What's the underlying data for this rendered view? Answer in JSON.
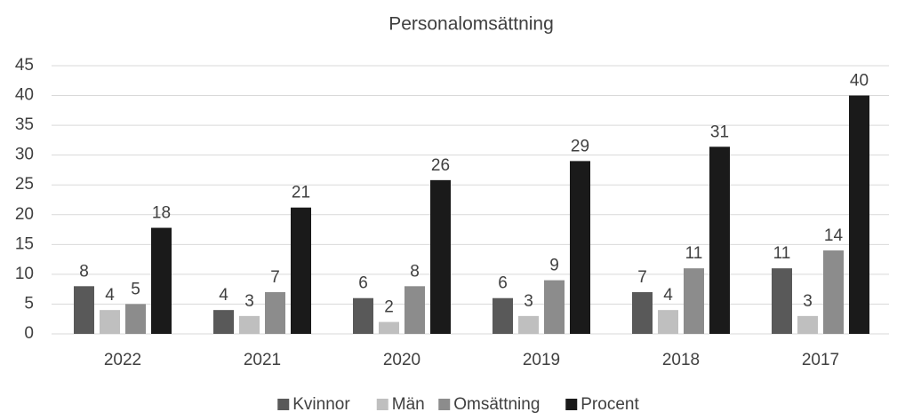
{
  "chart_data": {
    "type": "bar",
    "title": "Personalomsättning",
    "categories": [
      "2022",
      "2021",
      "2020",
      "2019",
      "2018",
      "2017"
    ],
    "series": [
      {
        "name": "Kvinnor",
        "color": "#595959",
        "values": [
          8,
          4,
          6,
          6,
          7,
          11
        ]
      },
      {
        "name": "Män",
        "color": "#bfbfbf",
        "values": [
          4,
          3,
          2,
          3,
          4,
          3
        ]
      },
      {
        "name": "Omsättning",
        "color": "#8c8c8c",
        "values": [
          5,
          7,
          8,
          9,
          11,
          14
        ]
      },
      {
        "name": "Procent",
        "color": "#1a1a1a",
        "values": [
          17.8,
          21.2,
          25.8,
          29,
          31.4,
          40
        ],
        "value_labels": [
          "18",
          "21",
          "26",
          "29",
          "31",
          "40"
        ]
      }
    ],
    "ylim": [
      0,
      45
    ],
    "yticks": [
      0,
      5,
      10,
      15,
      20,
      25,
      30,
      35,
      40,
      45
    ],
    "grid": true,
    "legend": "bottom"
  }
}
